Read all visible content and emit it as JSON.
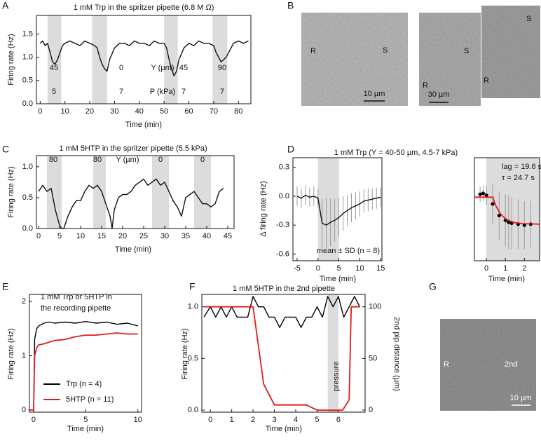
{
  "panels": [
    "A",
    "B",
    "C",
    "D",
    "E",
    "F",
    "G"
  ],
  "images": [
    {
      "labels": [
        "R",
        "S"
      ],
      "scale": "10 µm"
    },
    {
      "labels": [
        "S",
        "R"
      ],
      "scale": "30 µm"
    },
    {
      "labels": [
        "S",
        "R"
      ]
    },
    {
      "labels": [
        "R",
        "2nd"
      ],
      "scale": "10 µm"
    }
  ],
  "chart_data": [
    {
      "type": "line",
      "title": "1 mM Trp in the spritzer pipette (6.8 M Ω)",
      "xlabel": "Time (min)",
      "ylabel": "Firing rate (Hz)",
      "xlim": [
        -1.5,
        85
      ],
      "ylim": [
        0,
        1.9
      ],
      "xticks": [
        0,
        10,
        20,
        30,
        40,
        50,
        60,
        70,
        80
      ],
      "yticks": [
        {
          "value": 0,
          "label": "0.0"
        },
        0.5,
        {
          "value": 1,
          "label": "1.0"
        },
        1.5
      ],
      "shaded": [
        [
          3,
          8.5
        ],
        [
          21,
          27
        ],
        [
          50,
          55.5
        ],
        [
          69.5,
          75.5
        ]
      ],
      "shade_color": "#dcdcdc",
      "annotations": [
        "45",
        "0",
        "Y (µm)",
        "45",
        "90",
        "5",
        "7",
        "P (kPa)",
        "7",
        "7"
      ],
      "x": [
        0,
        1,
        2,
        3,
        4,
        5,
        6,
        7,
        8,
        9,
        10,
        12,
        14,
        16,
        18,
        20,
        22,
        23,
        24,
        25,
        26,
        27,
        28,
        30,
        32,
        34,
        36,
        38,
        40,
        42,
        44,
        46,
        48,
        50,
        51,
        52,
        53,
        54,
        55,
        56,
        58,
        60,
        62,
        64,
        66,
        68,
        70,
        71,
        72,
        73,
        74,
        75,
        76,
        78,
        80,
        82,
        84
      ],
      "series": [
        {
          "color": "#111111",
          "values": [
            1.3,
            1.35,
            1.25,
            1.3,
            1.1,
            0.9,
            0.85,
            0.95,
            1.1,
            1.25,
            1.3,
            1.35,
            1.3,
            1.25,
            1.35,
            1.3,
            1.25,
            1.2,
            1.0,
            0.85,
            0.75,
            0.7,
            0.95,
            1.2,
            1.3,
            1.3,
            1.25,
            1.35,
            1.3,
            1.3,
            1.25,
            1.35,
            1.3,
            1.3,
            1.2,
            0.95,
            0.75,
            0.6,
            0.7,
            0.95,
            1.2,
            1.3,
            1.25,
            1.35,
            1.3,
            1.3,
            1.25,
            1.1,
            1.0,
            0.9,
            0.95,
            1.0,
            1.1,
            1.3,
            1.35,
            1.3,
            1.35
          ]
        }
      ]
    },
    {
      "type": "line",
      "title": "1 mM 5HTP in the spritzer pipette (5.5 kPa)",
      "xlabel": "Time (min)",
      "ylabel": "Firing rate (Hz)",
      "xlim": [
        -0.5,
        46.5
      ],
      "ylim": [
        0,
        1.18
      ],
      "xticks": [
        0,
        5,
        10,
        15,
        20,
        25,
        30,
        35,
        40,
        45
      ],
      "yticks": [
        {
          "value": 0,
          "label": "0.0"
        },
        0.5,
        {
          "value": 1,
          "label": "1.0"
        }
      ],
      "shaded": [
        [
          2,
          5.5
        ],
        [
          13,
          16
        ],
        [
          27,
          31
        ],
        [
          37,
          41
        ]
      ],
      "shade_color": "#dcdcdc",
      "annotations": [
        "80",
        "80",
        "Y (µm)",
        "0",
        "0"
      ],
      "x": [
        0,
        1,
        2,
        3,
        4,
        5,
        5.5,
        6,
        7,
        8,
        9,
        10,
        11,
        12,
        13,
        14,
        15,
        16,
        17,
        17.5,
        18,
        19,
        20,
        21,
        22,
        23,
        24,
        25,
        26,
        27,
        28,
        29,
        30,
        31,
        32,
        33,
        34,
        35,
        36,
        37,
        38,
        39,
        40,
        41,
        42,
        43,
        44
      ],
      "series": [
        {
          "color": "#111111",
          "values": [
            0.6,
            0.7,
            0.6,
            0.65,
            0.3,
            0.05,
            0,
            0,
            0.2,
            0.35,
            0.45,
            0.45,
            0.6,
            0.7,
            0.65,
            0.7,
            0.6,
            0.4,
            0.2,
            0,
            0.3,
            0.5,
            0.55,
            0.55,
            0.6,
            0.7,
            0.75,
            0.8,
            0.7,
            0.75,
            0.8,
            0.7,
            0.75,
            0.6,
            0.45,
            0.35,
            0.2,
            0.5,
            0.55,
            0.6,
            0.5,
            0.4,
            0.4,
            0.35,
            0.4,
            0.6,
            0.65
          ]
        }
      ]
    },
    {
      "type": "line",
      "title": "1 mM Trp (Y = 40-50 µm, 4.5-7 kPa)",
      "xlabel": "Time (min)",
      "ylabel": "Δ firing rate (Hz)",
      "xlim": [
        -6,
        15.3
      ],
      "ylim": [
        -0.67,
        0.4
      ],
      "xticks": [
        -5,
        0,
        5,
        10,
        15
      ],
      "yticks": [
        -0.6,
        -0.3,
        {
          "value": 0,
          "label": "0.0"
        },
        0.3
      ],
      "shaded": [
        [
          0,
          5
        ]
      ],
      "shade_color": "#dcdcdc",
      "annotations": [
        "mean ± SD (n = 8)"
      ],
      "x": [
        -5,
        -4,
        -3,
        -2,
        -1,
        0,
        1,
        2,
        3,
        4,
        5,
        6,
        7,
        8,
        9,
        10,
        11,
        12,
        13,
        14,
        15
      ],
      "series": [
        {
          "color": "#111111",
          "error_color": "#9a9a9a",
          "values": [
            0,
            -0.02,
            0.01,
            -0.01,
            0,
            -0.02,
            -0.28,
            -0.3,
            -0.27,
            -0.25,
            -0.22,
            -0.18,
            -0.15,
            -0.12,
            -0.1,
            -0.08,
            -0.05,
            -0.04,
            -0.03,
            -0.02,
            -0.01
          ],
          "errors": [
            0.1,
            0.1,
            0.1,
            0.1,
            0.1,
            0.1,
            0.25,
            0.28,
            0.25,
            0.22,
            0.2,
            0.18,
            0.16,
            0.15,
            0.14,
            0.13,
            0.12,
            0.12,
            0.11,
            0.11,
            0.1
          ]
        }
      ]
    },
    {
      "type": "line",
      "xlabel": "Time (min)",
      "xlim": [
        -0.63,
        2.8
      ],
      "ylim": [
        -0.67,
        0.4
      ],
      "xticks": [
        0,
        1,
        2
      ],
      "shaded": [
        [
          0,
          2.8
        ]
      ],
      "shade_color": "#dcdcdc",
      "annotations": [
        "lag = 19.6 s",
        "τ = 24.7 s"
      ],
      "series": [
        {
          "color": "#000000",
          "marker": "dot",
          "error_color": "#9a9a9a",
          "x": [
            -0.33,
            -0.17,
            0,
            0.33,
            0.67,
            1,
            1.17,
            1.33,
            1.67,
            2,
            2.33
          ],
          "values": [
            0.02,
            0.03,
            0.01,
            -0.08,
            -0.2,
            -0.25,
            -0.27,
            -0.28,
            -0.29,
            -0.3,
            -0.29
          ],
          "errors": [
            0.08,
            0.08,
            0.1,
            0.2,
            0.25,
            0.27,
            0.28,
            0.27,
            0.26,
            0.25,
            0.24
          ]
        },
        {
          "color": "#e31a1c",
          "x": [
            -0.6,
            0.33,
            0.5,
            0.75,
            1,
            1.25,
            1.5,
            2,
            2.5,
            2.8
          ],
          "values": [
            -0.01,
            -0.01,
            -0.1,
            -0.185,
            -0.233,
            -0.259,
            -0.274,
            -0.285,
            -0.288,
            -0.29
          ]
        }
      ]
    },
    {
      "type": "line",
      "title": [
        "1 mM Trp or 5HTP in",
        "the recording pipette"
      ],
      "xlabel": "Time (min)",
      "ylabel": "Firing rate (Hz)",
      "xlim": [
        -0.4,
        10.35
      ],
      "ylim": [
        -0.04,
        2.13
      ],
      "xticks": [
        0,
        5,
        10
      ],
      "yticks": [
        0,
        1,
        2
      ],
      "legend": "lower right",
      "x": [
        -0.5,
        0,
        0.1,
        0.3,
        0.5,
        1,
        1.5,
        2,
        3,
        4,
        5,
        6,
        7,
        8,
        9,
        10
      ],
      "series": [
        {
          "name": "Trp (n = 4)",
          "color": "#000000",
          "values": [
            0,
            0,
            1.3,
            1.5,
            1.55,
            1.6,
            1.62,
            1.6,
            1.62,
            1.6,
            1.63,
            1.6,
            1.62,
            1.58,
            1.6,
            1.55
          ]
        },
        {
          "name": "5HTP (n = 11)",
          "color": "#e31a1c",
          "values": [
            0,
            0,
            1.0,
            1.15,
            1.2,
            1.22,
            1.25,
            1.28,
            1.3,
            1.35,
            1.38,
            1.38,
            1.4,
            1.42,
            1.4,
            1.4
          ]
        }
      ]
    },
    {
      "type": "line",
      "title": "1 mM 5HTP in the 2nd pipette",
      "xlabel": "Time (min)",
      "ylabel": "Firing rate (Hz)",
      "y2label": "2nd pip distance (µm)",
      "xlim": [
        -0.4,
        7.25
      ],
      "ylim": [
        -0.02,
        1.12
      ],
      "y2lim": [
        -2,
        112
      ],
      "xticks": [
        0,
        1,
        2,
        3,
        4,
        5,
        6
      ],
      "yticks": [
        {
          "value": 0,
          "label": "0.0"
        },
        0.5,
        {
          "value": 1,
          "label": "1.0"
        }
      ],
      "y2ticks": [
        0,
        50,
        100
      ],
      "shaded": [
        [
          5.5,
          6
        ]
      ],
      "shade_color": "#dcdcdc",
      "annotations": [
        "pressure"
      ],
      "x": [
        -0.3,
        0,
        0.25,
        0.5,
        0.75,
        1,
        1.25,
        1.5,
        1.75,
        2,
        2.25,
        2.5,
        2.75,
        3,
        3.25,
        3.5,
        3.75,
        4,
        4.25,
        4.5,
        4.75,
        5,
        5.25,
        5.5,
        5.75,
        6,
        6.25,
        6.5,
        6.75,
        7
      ],
      "series": [
        {
          "color": "#000000",
          "values": [
            0.9,
            1.0,
            0.9,
            1.0,
            0.9,
            1.0,
            0.9,
            0.9,
            0.9,
            1.1,
            1.0,
            1.0,
            0.9,
            0.9,
            0.8,
            0.9,
            0.9,
            0.9,
            0.8,
            0.9,
            0.9,
            1.0,
            0.9,
            1.1,
            1.0,
            1.1,
            0.9,
            1.0,
            1.1,
            1.0
          ]
        },
        {
          "color": "#e31a1c",
          "axis": "y2",
          "x": [
            -0.3,
            2,
            2.5,
            3,
            4.5,
            5,
            6.2,
            6.5,
            6.6,
            7
          ],
          "values": [
            100,
            100,
            25,
            5,
            5,
            0,
            0,
            10,
            100,
            100
          ]
        }
      ]
    }
  ]
}
